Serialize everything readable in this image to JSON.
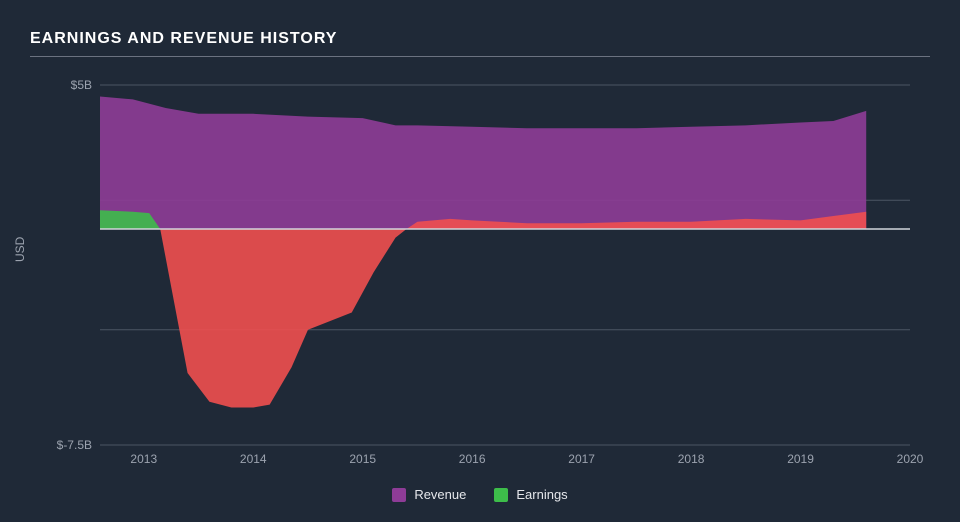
{
  "chart": {
    "type": "area",
    "title": "EARNINGS AND REVENUE HISTORY",
    "background_color": "#1f2937",
    "grid_color": "#4b5563",
    "zero_line_color": "#d1d5db",
    "text_color": "#9ca3af",
    "title_color": "#ffffff",
    "title_fontsize": 16,
    "label_fontsize": 12,
    "y_axis": {
      "title": "USD",
      "min": -7.5,
      "max": 5.0,
      "ticks": [
        {
          "value": 5.0,
          "label": "$5B"
        },
        {
          "value": -7.5,
          "label": "$-7.5B"
        }
      ],
      "gridlines": [
        5.0,
        1.0,
        -3.5,
        -7.5
      ]
    },
    "x_axis": {
      "min": 2012.6,
      "max": 2020.0,
      "ticks": [
        2013,
        2014,
        2015,
        2016,
        2017,
        2018,
        2019,
        2020
      ]
    },
    "series": [
      {
        "name": "Revenue",
        "color": "#8e3c97",
        "fill_opacity": 0.9,
        "points": [
          {
            "x": 2012.6,
            "y": 4.6
          },
          {
            "x": 2012.9,
            "y": 4.5
          },
          {
            "x": 2013.2,
            "y": 4.2
          },
          {
            "x": 2013.5,
            "y": 4.0
          },
          {
            "x": 2014.0,
            "y": 4.0
          },
          {
            "x": 2014.5,
            "y": 3.9
          },
          {
            "x": 2015.0,
            "y": 3.85
          },
          {
            "x": 2015.3,
            "y": 3.6
          },
          {
            "x": 2015.5,
            "y": 3.6
          },
          {
            "x": 2016.0,
            "y": 3.55
          },
          {
            "x": 2016.5,
            "y": 3.5
          },
          {
            "x": 2017.0,
            "y": 3.5
          },
          {
            "x": 2017.5,
            "y": 3.5
          },
          {
            "x": 2018.0,
            "y": 3.55
          },
          {
            "x": 2018.5,
            "y": 3.6
          },
          {
            "x": 2019.0,
            "y": 3.7
          },
          {
            "x": 2019.3,
            "y": 3.75
          },
          {
            "x": 2019.6,
            "y": 4.1
          }
        ]
      },
      {
        "name": "Earnings",
        "positive_color": "#3dbd4a",
        "negative_color": "#ef4f4f",
        "fill_opacity": 0.9,
        "points": [
          {
            "x": 2012.6,
            "y": 0.65
          },
          {
            "x": 2012.9,
            "y": 0.6
          },
          {
            "x": 2013.05,
            "y": 0.55
          },
          {
            "x": 2013.15,
            "y": 0.0
          },
          {
            "x": 2013.25,
            "y": -2.0
          },
          {
            "x": 2013.4,
            "y": -5.0
          },
          {
            "x": 2013.6,
            "y": -6.0
          },
          {
            "x": 2013.8,
            "y": -6.2
          },
          {
            "x": 2014.0,
            "y": -6.2
          },
          {
            "x": 2014.15,
            "y": -6.1
          },
          {
            "x": 2014.35,
            "y": -4.8
          },
          {
            "x": 2014.5,
            "y": -3.5
          },
          {
            "x": 2014.7,
            "y": -3.2
          },
          {
            "x": 2014.9,
            "y": -2.9
          },
          {
            "x": 2015.1,
            "y": -1.5
          },
          {
            "x": 2015.3,
            "y": -0.3
          },
          {
            "x": 2015.4,
            "y": 0.0
          },
          {
            "x": 2015.5,
            "y": 0.25
          },
          {
            "x": 2015.8,
            "y": 0.35
          },
          {
            "x": 2016.0,
            "y": 0.3
          },
          {
            "x": 2016.5,
            "y": 0.2
          },
          {
            "x": 2017.0,
            "y": 0.2
          },
          {
            "x": 2017.5,
            "y": 0.25
          },
          {
            "x": 2018.0,
            "y": 0.25
          },
          {
            "x": 2018.5,
            "y": 0.35
          },
          {
            "x": 2019.0,
            "y": 0.3
          },
          {
            "x": 2019.3,
            "y": 0.45
          },
          {
            "x": 2019.6,
            "y": 0.6
          }
        ]
      }
    ],
    "legend": {
      "position": "bottom-center",
      "items": [
        {
          "label": "Revenue",
          "color": "#8e3c97"
        },
        {
          "label": "Earnings",
          "color": "#3dbd4a"
        }
      ]
    }
  }
}
